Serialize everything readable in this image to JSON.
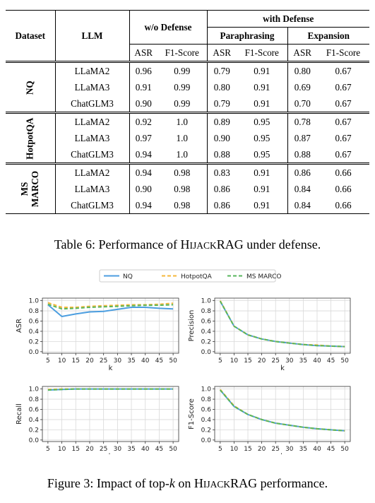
{
  "table": {
    "headers": {
      "dataset": "Dataset",
      "llm": "LLM",
      "without_defense": "w/o Defense",
      "with_defense": "with Defense",
      "paraphrasing": "Paraphrasing",
      "expansion": "Expansion",
      "asr": "ASR",
      "f1": "F1-Score"
    },
    "groups": [
      {
        "dataset": "NQ",
        "rows": [
          {
            "llm": "LLaMA2",
            "values": [
              "0.96",
              "0.99",
              "0.79",
              "0.91",
              "0.80",
              "0.67"
            ],
            "bold": []
          },
          {
            "llm": "LLaMA3",
            "values": [
              "0.91",
              "0.99",
              "0.80",
              "0.91",
              "0.69",
              "0.67"
            ],
            "bold": []
          },
          {
            "llm": "ChatGLM3",
            "values": [
              "0.90",
              "0.99",
              "0.79",
              "0.91",
              "0.70",
              "0.67"
            ],
            "bold": []
          }
        ]
      },
      {
        "dataset": "HotpotQA",
        "rows": [
          {
            "llm": "LLaMA2",
            "values": [
              "0.92",
              "1.0",
              "0.89",
              "0.95",
              "0.78",
              "0.67"
            ],
            "bold": []
          },
          {
            "llm": "LLaMA3",
            "values": [
              "0.97",
              "1.0",
              "0.90",
              "0.95",
              "0.87",
              "0.67"
            ],
            "bold": [
              0,
              1,
              2,
              3
            ]
          },
          {
            "llm": "ChatGLM3",
            "values": [
              "0.94",
              "1.0",
              "0.88",
              "0.95",
              "0.88",
              "0.67"
            ],
            "bold": [
              4,
              5
            ]
          }
        ]
      },
      {
        "dataset_line1": "MS",
        "dataset_line2": "MARCO",
        "rows": [
          {
            "llm": "LLaMA2",
            "values": [
              "0.94",
              "0.98",
              "0.83",
              "0.91",
              "0.86",
              "0.66"
            ],
            "bold": []
          },
          {
            "llm": "LLaMA3",
            "values": [
              "0.90",
              "0.98",
              "0.86",
              "0.91",
              "0.84",
              "0.66"
            ],
            "bold": []
          },
          {
            "llm": "ChatGLM3",
            "values": [
              "0.94",
              "0.98",
              "0.86",
              "0.91",
              "0.84",
              "0.66"
            ],
            "bold": []
          }
        ]
      }
    ]
  },
  "table_caption": {
    "prefix": "Table 6: Performance of ",
    "name_h": "H",
    "name_ijack": "IJACK",
    "name_rag": "RAG",
    "suffix": " under defense."
  },
  "figure_caption": {
    "prefix": "Figure 3: Impact of top-",
    "k": "k",
    "middle": " on ",
    "name_h": "H",
    "name_ijack": "IJACK",
    "name_rag": "RAG",
    "suffix": " performance."
  },
  "chart_data": [
    {
      "type": "line",
      "ylabel": "ASR",
      "xlabel": "k",
      "x": [
        5,
        10,
        15,
        20,
        25,
        30,
        35,
        40,
        45,
        50
      ],
      "ylim": [
        0.0,
        1.0
      ],
      "yticks": [
        "0.0",
        "0.2",
        "0.4",
        "0.6",
        "0.8",
        "1.0"
      ],
      "grid": true,
      "series": [
        {
          "name": "NQ",
          "color": "#4c9ee0",
          "dash": "solid",
          "values": [
            0.92,
            0.69,
            0.74,
            0.78,
            0.79,
            0.83,
            0.87,
            0.87,
            0.85,
            0.84
          ]
        },
        {
          "name": "HotpotQA",
          "color": "#f5b73b",
          "dash": "dashed",
          "values": [
            0.96,
            0.87,
            0.87,
            0.89,
            0.9,
            0.91,
            0.92,
            0.92,
            0.93,
            0.95
          ]
        },
        {
          "name": "MS MARCO",
          "color": "#57b65c",
          "dash": "dashed",
          "values": [
            0.93,
            0.84,
            0.85,
            0.87,
            0.88,
            0.89,
            0.9,
            0.91,
            0.91,
            0.92
          ]
        }
      ]
    },
    {
      "type": "line",
      "ylabel": "Precision",
      "xlabel": "k",
      "x": [
        5,
        10,
        15,
        20,
        25,
        30,
        35,
        40,
        45,
        50
      ],
      "ylim": [
        0.0,
        1.0
      ],
      "yticks": [
        "0.0",
        "0.2",
        "0.4",
        "0.6",
        "0.8",
        "1.0"
      ],
      "grid": true,
      "series": [
        {
          "name": "NQ",
          "color": "#4c9ee0",
          "dash": "solid",
          "values": [
            0.99,
            0.5,
            0.33,
            0.25,
            0.2,
            0.17,
            0.14,
            0.12,
            0.11,
            0.1
          ]
        },
        {
          "name": "HotpotQA",
          "color": "#f5b73b",
          "dash": "dashed",
          "values": [
            1.0,
            0.5,
            0.33,
            0.25,
            0.2,
            0.17,
            0.14,
            0.13,
            0.11,
            0.1
          ]
        },
        {
          "name": "MS MARCO",
          "color": "#57b65c",
          "dash": "dashed",
          "values": [
            0.99,
            0.5,
            0.33,
            0.25,
            0.2,
            0.17,
            0.14,
            0.12,
            0.11,
            0.1
          ]
        }
      ]
    },
    {
      "type": "line",
      "ylabel": "Recall",
      "xlabel": "k",
      "x": [
        5,
        10,
        15,
        20,
        25,
        30,
        35,
        40,
        45,
        50
      ],
      "ylim": [
        0.0,
        1.0
      ],
      "yticks": [
        "0.0",
        "0.2",
        "0.4",
        "0.6",
        "0.8",
        "1.0"
      ],
      "grid": true,
      "series": [
        {
          "name": "NQ",
          "color": "#4c9ee0",
          "dash": "solid",
          "values": [
            0.98,
            0.99,
            1.0,
            1.0,
            1.0,
            1.0,
            1.0,
            1.0,
            1.0,
            1.0
          ]
        },
        {
          "name": "HotpotQA",
          "color": "#f5b73b",
          "dash": "dashed",
          "values": [
            0.99,
            1.0,
            1.0,
            1.0,
            1.0,
            1.0,
            1.0,
            1.0,
            1.0,
            1.0
          ]
        },
        {
          "name": "MS MARCO",
          "color": "#57b65c",
          "dash": "dashed",
          "values": [
            0.98,
            0.99,
            1.0,
            1.0,
            1.0,
            1.0,
            1.0,
            1.0,
            1.0,
            1.0
          ]
        }
      ]
    },
    {
      "type": "line",
      "ylabel": "F1-Score",
      "xlabel": "k",
      "x": [
        5,
        10,
        15,
        20,
        25,
        30,
        35,
        40,
        45,
        50
      ],
      "ylim": [
        0.0,
        1.0
      ],
      "yticks": [
        "0.0",
        "0.2",
        "0.4",
        "0.6",
        "0.8",
        "1.0"
      ],
      "grid": true,
      "series": [
        {
          "name": "NQ",
          "color": "#4c9ee0",
          "dash": "solid",
          "values": [
            0.98,
            0.66,
            0.5,
            0.4,
            0.33,
            0.29,
            0.25,
            0.22,
            0.2,
            0.18
          ]
        },
        {
          "name": "HotpotQA",
          "color": "#f5b73b",
          "dash": "dashed",
          "values": [
            0.99,
            0.67,
            0.5,
            0.4,
            0.33,
            0.29,
            0.25,
            0.22,
            0.2,
            0.18
          ]
        },
        {
          "name": "MS MARCO",
          "color": "#57b65c",
          "dash": "dashed",
          "values": [
            0.98,
            0.66,
            0.5,
            0.4,
            0.33,
            0.29,
            0.25,
            0.22,
            0.2,
            0.18
          ]
        }
      ]
    }
  ],
  "legend": {
    "placement": "top-center",
    "entries": [
      {
        "name": "NQ",
        "color": "#4c9ee0",
        "dash": "solid"
      },
      {
        "name": "HotpotQA",
        "color": "#f5b73b",
        "dash": "dashed"
      },
      {
        "name": "MS MARCO",
        "color": "#57b65c",
        "dash": "dashed"
      }
    ]
  }
}
